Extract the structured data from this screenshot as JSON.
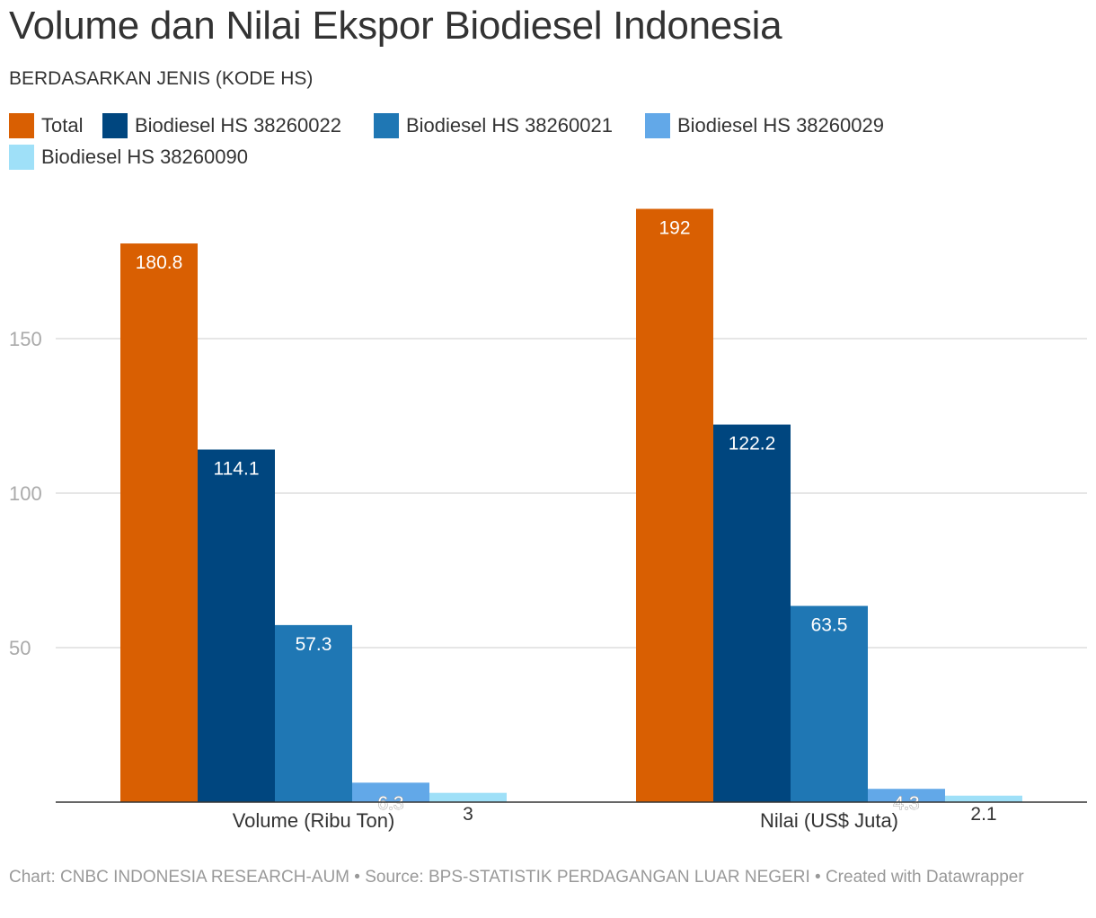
{
  "title": "Volume dan Nilai Ekspor Biodiesel Indonesia",
  "subtitle": "BERDASARKAN JENIS (KODE HS)",
  "footer": "Chart: CNBC INDONESIA RESEARCH-AUM • Source: BPS-STATISTIK PERDAGANGAN LUAR NEGERI • Created with Datawrapper",
  "chart_data": {
    "type": "bar",
    "categories": [
      "Volume (Ribu Ton)",
      "Nilai (US$ Juta)"
    ],
    "series": [
      {
        "name": "Total",
        "color": "#d95f02",
        "values": [
          180.8,
          192
        ]
      },
      {
        "name": "Biodiesel HS 38260022",
        "color": "#00467f",
        "values": [
          114.1,
          122.2
        ]
      },
      {
        "name": "Biodiesel HS 38260021",
        "color": "#1f77b4",
        "values": [
          57.3,
          63.5
        ]
      },
      {
        "name": "Biodiesel HS 38260029",
        "color": "#62a8e8",
        "values": [
          6.3,
          4.3
        ]
      },
      {
        "name": "Biodiesel HS 38260090",
        "color": "#9fe0f8",
        "values": [
          3,
          2.1
        ]
      }
    ],
    "data_labels": [
      [
        "180.8",
        "192"
      ],
      [
        "114.1",
        "122.2"
      ],
      [
        "57.3",
        "63.5"
      ],
      [
        "6.3",
        "4.3"
      ],
      [
        "3",
        "2.1"
      ]
    ],
    "yticks": [
      "50",
      "100",
      "150"
    ],
    "ylim": [
      0,
      200
    ],
    "grid": true,
    "legend_position": "top-left"
  }
}
